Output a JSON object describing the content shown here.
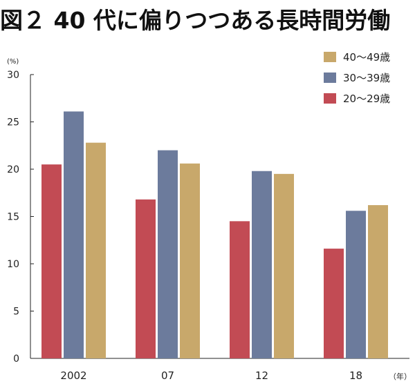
{
  "title": "図２ 40 代に偏りつつある長時間労働",
  "chart_data": {
    "type": "bar",
    "title": "図２ 40 代に偏りつつある長時間労働",
    "y_unit": "(%)",
    "x_unit": "（年）",
    "xlabel": "",
    "ylabel": "",
    "ylim": [
      0,
      30
    ],
    "yticks": [
      0,
      5,
      10,
      15,
      20,
      25,
      30
    ],
    "categories": [
      "2002",
      "07",
      "12",
      "18"
    ],
    "series": [
      {
        "name": "20〜29歳",
        "color": "#c24b54",
        "values": [
          20.5,
          16.8,
          14.5,
          11.6
        ]
      },
      {
        "name": "30〜39歳",
        "color": "#6c7b9c",
        "values": [
          26.1,
          22.0,
          19.8,
          15.6
        ]
      },
      {
        "name": "40〜49歳",
        "color": "#c8a86b",
        "values": [
          22.8,
          20.6,
          19.5,
          16.2
        ]
      }
    ],
    "legend_order": [
      "40〜49歳",
      "30〜39歳",
      "20〜29歳"
    ],
    "legend_position": "top-right",
    "grid": false
  }
}
